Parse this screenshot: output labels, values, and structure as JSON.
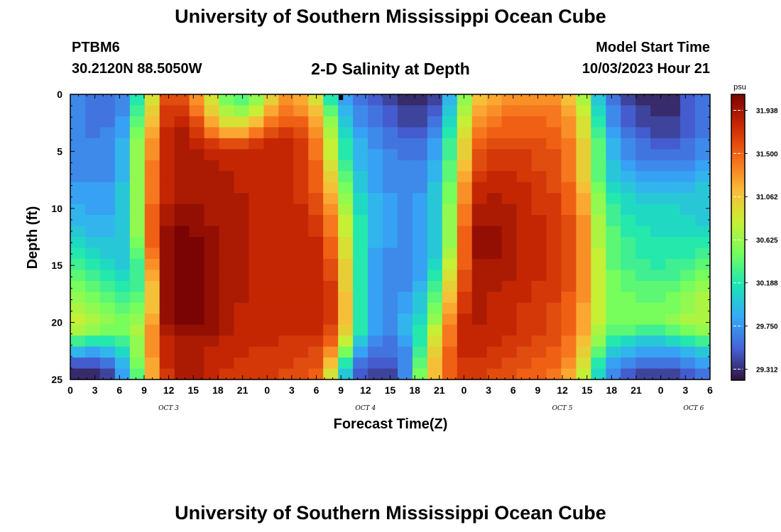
{
  "header": {
    "title": "University of Southern Mississippi Ocean Cube",
    "station": "PTBM6",
    "coordinates": "30.2120N  88.5050W",
    "subtitle": "2-D Salinity at Depth",
    "model_start_label": "Model Start Time",
    "model_start_value": "10/03/2023 Hour 21"
  },
  "footer": {
    "title": "University of Southern Mississippi Ocean Cube"
  },
  "chart_data": {
    "type": "heatmap",
    "xlabel": "Forecast Time(Z)",
    "ylabel": "Depth (ft)",
    "x_range_hours": [
      0,
      78
    ],
    "x_tick_labels": [
      "0",
      "3",
      "6",
      "9",
      "12",
      "15",
      "18",
      "21",
      "0",
      "3",
      "6",
      "9",
      "12",
      "15",
      "18",
      "21",
      "0",
      "3",
      "6",
      "9",
      "12",
      "15",
      "18",
      "21",
      "0",
      "3",
      "6"
    ],
    "x_day_labels": [
      {
        "label": "OCT 3",
        "hour": 12
      },
      {
        "label": "OCT 4",
        "hour": 36
      },
      {
        "label": "OCT 5",
        "hour": 60
      },
      {
        "label": "OCT 6",
        "hour": 76
      }
    ],
    "y_range": [
      0,
      25
    ],
    "y_tick_labels": [
      "0",
      "5",
      "10",
      "15",
      "20",
      "25"
    ],
    "y_inverted": true,
    "colorbar": {
      "unit": "psu",
      "min": 29.2,
      "max": 32.1,
      "tick_labels": [
        "31.938",
        "31.500",
        "31.062",
        "30.625",
        "30.188",
        "29.750",
        "29.312"
      ],
      "colors": [
        "#30123b",
        "#4662d8",
        "#35abf8",
        "#1be5b5",
        "#74fe5d",
        "#c9ef34",
        "#fbb938",
        "#f56918",
        "#c92903",
        "#7a0403"
      ]
    },
    "salinity_psu": [
      [
        29.7,
        29.6,
        29.6,
        29.7,
        30.2,
        30.9,
        31.6,
        31.6,
        31.3,
        30.9,
        30.5,
        30.4,
        30.6,
        31.0,
        31.3,
        31.2,
        30.9,
        30.2,
        29.8,
        29.6,
        29.5,
        29.4,
        29.3,
        29.3,
        29.4,
        29.9,
        30.6,
        31.1,
        31.2,
        31.3,
        31.3,
        31.3,
        31.3,
        31.1,
        30.7,
        30.0,
        29.6,
        29.4,
        29.3,
        29.3,
        29.3,
        29.5,
        29.6
      ],
      [
        29.7,
        29.6,
        29.6,
        29.7,
        30.3,
        31.0,
        31.7,
        31.7,
        31.4,
        31.0,
        30.7,
        30.6,
        30.8,
        31.2,
        31.4,
        31.3,
        31.1,
        30.4,
        29.9,
        29.7,
        29.6,
        29.5,
        29.4,
        29.4,
        29.5,
        30.0,
        30.7,
        31.2,
        31.3,
        31.4,
        31.4,
        31.4,
        31.4,
        31.2,
        30.8,
        30.1,
        29.7,
        29.5,
        29.4,
        29.3,
        29.3,
        29.5,
        29.6
      ],
      [
        29.7,
        29.6,
        29.6,
        29.8,
        30.4,
        31.1,
        31.7,
        31.8,
        31.6,
        31.2,
        30.9,
        30.9,
        31.1,
        31.4,
        31.5,
        31.5,
        31.2,
        30.6,
        30.0,
        29.7,
        29.6,
        29.5,
        29.4,
        29.4,
        29.6,
        30.1,
        30.8,
        31.3,
        31.4,
        31.5,
        31.5,
        31.5,
        31.4,
        31.3,
        30.9,
        30.2,
        29.7,
        29.5,
        29.4,
        29.4,
        29.4,
        29.5,
        29.6
      ],
      [
        29.7,
        29.6,
        29.7,
        29.8,
        30.5,
        31.2,
        31.8,
        31.9,
        31.7,
        31.4,
        31.2,
        31.2,
        31.4,
        31.6,
        31.7,
        31.6,
        31.3,
        30.7,
        30.1,
        29.8,
        29.7,
        29.6,
        29.5,
        29.5,
        29.7,
        30.2,
        30.9,
        31.4,
        31.5,
        31.5,
        31.5,
        31.5,
        31.5,
        31.3,
        30.9,
        30.3,
        29.8,
        29.6,
        29.5,
        29.4,
        29.4,
        29.5,
        29.6
      ],
      [
        29.7,
        29.7,
        29.7,
        29.9,
        30.6,
        31.3,
        31.8,
        31.9,
        31.8,
        31.7,
        31.6,
        31.6,
        31.7,
        31.8,
        31.8,
        31.7,
        31.4,
        30.8,
        30.2,
        29.9,
        29.7,
        29.6,
        29.6,
        29.6,
        29.8,
        30.3,
        31.0,
        31.5,
        31.6,
        31.6,
        31.6,
        31.6,
        31.5,
        31.4,
        31.0,
        30.4,
        29.9,
        29.7,
        29.6,
        29.5,
        29.5,
        29.6,
        29.7
      ],
      [
        29.7,
        29.7,
        29.7,
        29.9,
        30.6,
        31.3,
        31.8,
        31.9,
        31.9,
        31.8,
        31.8,
        31.8,
        31.8,
        31.8,
        31.8,
        31.7,
        31.4,
        30.8,
        30.2,
        29.9,
        29.8,
        29.7,
        29.6,
        29.6,
        29.8,
        30.3,
        31.0,
        31.6,
        31.7,
        31.7,
        31.7,
        31.6,
        31.6,
        31.4,
        31.0,
        30.4,
        29.9,
        29.7,
        29.6,
        29.6,
        29.6,
        29.6,
        29.7
      ],
      [
        29.7,
        29.7,
        29.7,
        29.9,
        30.6,
        31.4,
        31.8,
        31.9,
        31.9,
        31.9,
        31.8,
        31.8,
        31.8,
        31.8,
        31.8,
        31.7,
        31.5,
        30.9,
        30.3,
        29.9,
        29.8,
        29.7,
        29.7,
        29.7,
        29.9,
        30.4,
        31.1,
        31.6,
        31.7,
        31.7,
        31.7,
        31.6,
        31.6,
        31.4,
        31.0,
        30.4,
        30.0,
        29.8,
        29.7,
        29.7,
        29.7,
        29.7,
        29.8
      ],
      [
        29.7,
        29.7,
        29.7,
        29.9,
        30.6,
        31.4,
        31.8,
        31.9,
        31.9,
        31.9,
        31.9,
        31.8,
        31.8,
        31.8,
        31.8,
        31.7,
        31.5,
        31.0,
        30.4,
        30.0,
        29.8,
        29.7,
        29.7,
        29.7,
        29.9,
        30.4,
        31.2,
        31.7,
        31.8,
        31.8,
        31.7,
        31.7,
        31.6,
        31.4,
        31.0,
        30.4,
        30.0,
        29.9,
        29.8,
        29.8,
        29.8,
        29.8,
        29.9
      ],
      [
        29.8,
        29.8,
        29.8,
        30.0,
        30.6,
        31.4,
        31.8,
        31.9,
        31.9,
        31.9,
        31.9,
        31.8,
        31.8,
        31.8,
        31.8,
        31.7,
        31.5,
        31.1,
        30.5,
        30.0,
        29.8,
        29.7,
        29.7,
        29.7,
        30.0,
        30.5,
        31.3,
        31.8,
        31.8,
        31.8,
        31.8,
        31.7,
        31.6,
        31.5,
        31.1,
        30.5,
        30.1,
        30.0,
        29.9,
        29.9,
        29.9,
        29.9,
        30.0
      ],
      [
        29.8,
        29.8,
        29.8,
        30.0,
        30.6,
        31.4,
        31.8,
        31.9,
        31.9,
        31.9,
        31.9,
        31.9,
        31.8,
        31.8,
        31.8,
        31.7,
        31.6,
        31.2,
        30.6,
        30.1,
        29.9,
        29.8,
        29.7,
        29.8,
        30.0,
        30.5,
        31.3,
        31.8,
        31.9,
        31.8,
        31.8,
        31.7,
        31.7,
        31.5,
        31.2,
        30.6,
        30.2,
        30.1,
        30.0,
        30.0,
        30.0,
        30.0,
        30.0
      ],
      [
        29.9,
        29.8,
        29.8,
        30.0,
        30.6,
        31.5,
        31.9,
        32.0,
        32.0,
        31.9,
        31.9,
        31.9,
        31.8,
        31.8,
        31.8,
        31.8,
        31.6,
        31.3,
        30.7,
        30.1,
        29.9,
        29.8,
        29.7,
        29.8,
        30.0,
        30.6,
        31.4,
        31.9,
        31.9,
        31.9,
        31.8,
        31.7,
        31.7,
        31.5,
        31.2,
        30.6,
        30.3,
        30.1,
        30.1,
        30.1,
        30.1,
        30.0,
        30.0
      ],
      [
        29.9,
        29.9,
        29.9,
        30.0,
        30.6,
        31.5,
        31.9,
        32.0,
        32.0,
        31.9,
        31.9,
        31.9,
        31.8,
        31.8,
        31.8,
        31.8,
        31.7,
        31.4,
        30.8,
        30.2,
        29.9,
        29.8,
        29.7,
        29.8,
        30.0,
        30.6,
        31.4,
        31.9,
        31.9,
        31.9,
        31.8,
        31.8,
        31.7,
        31.6,
        31.3,
        30.7,
        30.3,
        30.2,
        30.1,
        30.1,
        30.1,
        30.1,
        30.0
      ],
      [
        30.0,
        29.9,
        29.9,
        30.0,
        30.6,
        31.5,
        32.0,
        32.1,
        32.0,
        32.0,
        31.9,
        31.9,
        31.8,
        31.8,
        31.8,
        31.8,
        31.7,
        31.4,
        30.8,
        30.2,
        29.9,
        29.8,
        29.7,
        29.8,
        30.0,
        30.6,
        31.5,
        32.0,
        32.0,
        31.9,
        31.8,
        31.8,
        31.7,
        31.6,
        31.3,
        30.7,
        30.4,
        30.2,
        30.2,
        30.1,
        30.1,
        30.1,
        30.1
      ],
      [
        30.1,
        30.0,
        30.0,
        30.0,
        30.5,
        31.5,
        32.0,
        32.1,
        32.1,
        32.0,
        31.9,
        31.9,
        31.8,
        31.8,
        31.8,
        31.8,
        31.8,
        31.5,
        30.9,
        30.2,
        29.9,
        29.8,
        29.7,
        29.8,
        30.0,
        30.6,
        31.5,
        32.0,
        32.0,
        31.9,
        31.8,
        31.8,
        31.7,
        31.6,
        31.3,
        30.7,
        30.4,
        30.3,
        30.2,
        30.2,
        30.2,
        30.2,
        30.2
      ],
      [
        30.2,
        30.1,
        30.0,
        30.0,
        30.4,
        31.4,
        32.0,
        32.1,
        32.1,
        32.0,
        31.9,
        31.9,
        31.8,
        31.8,
        31.8,
        31.8,
        31.8,
        31.5,
        30.9,
        30.2,
        29.8,
        29.7,
        29.7,
        29.8,
        30.0,
        30.7,
        31.5,
        32.0,
        32.0,
        31.9,
        31.8,
        31.8,
        31.7,
        31.6,
        31.3,
        30.8,
        30.4,
        30.3,
        30.2,
        30.2,
        30.2,
        30.2,
        30.3
      ],
      [
        30.3,
        30.2,
        30.1,
        30.0,
        30.3,
        31.3,
        32.0,
        32.1,
        32.1,
        32.0,
        31.9,
        31.9,
        31.8,
        31.8,
        31.8,
        31.8,
        31.8,
        31.6,
        31.0,
        30.2,
        29.8,
        29.7,
        29.7,
        29.8,
        30.1,
        30.8,
        31.5,
        31.9,
        31.9,
        31.9,
        31.8,
        31.8,
        31.7,
        31.6,
        31.3,
        30.8,
        30.4,
        30.3,
        30.3,
        30.2,
        30.3,
        30.3,
        30.4
      ],
      [
        30.4,
        30.3,
        30.2,
        30.1,
        30.3,
        31.2,
        32.0,
        32.1,
        32.1,
        32.0,
        31.9,
        31.9,
        31.8,
        31.8,
        31.8,
        31.8,
        31.8,
        31.6,
        31.0,
        30.2,
        29.8,
        29.7,
        29.7,
        29.8,
        30.2,
        30.9,
        31.6,
        31.9,
        31.9,
        31.9,
        31.8,
        31.8,
        31.7,
        31.6,
        31.3,
        30.8,
        30.5,
        30.4,
        30.3,
        30.3,
        30.3,
        30.4,
        30.5
      ],
      [
        30.5,
        30.4,
        30.3,
        30.2,
        30.3,
        31.1,
        32.0,
        32.1,
        32.1,
        32.0,
        31.9,
        31.9,
        31.8,
        31.8,
        31.8,
        31.8,
        31.8,
        31.7,
        31.0,
        30.2,
        29.8,
        29.7,
        29.7,
        29.9,
        30.3,
        31.0,
        31.6,
        31.9,
        31.9,
        31.8,
        31.8,
        31.7,
        31.7,
        31.6,
        31.3,
        30.8,
        30.5,
        30.4,
        30.4,
        30.4,
        30.4,
        30.5,
        30.6
      ],
      [
        30.6,
        30.5,
        30.4,
        30.3,
        30.4,
        31.1,
        32.0,
        32.1,
        32.1,
        32.0,
        31.9,
        31.9,
        31.8,
        31.8,
        31.8,
        31.8,
        31.8,
        31.7,
        31.1,
        30.2,
        29.8,
        29.7,
        29.8,
        30.0,
        30.4,
        31.1,
        31.7,
        31.9,
        31.8,
        31.8,
        31.8,
        31.7,
        31.7,
        31.5,
        31.3,
        30.8,
        30.5,
        30.5,
        30.4,
        30.4,
        30.5,
        30.6,
        30.7
      ],
      [
        30.7,
        30.6,
        30.5,
        30.4,
        30.5,
        31.1,
        32.0,
        32.1,
        32.1,
        32.0,
        31.9,
        31.8,
        31.8,
        31.8,
        31.8,
        31.8,
        31.8,
        31.7,
        31.1,
        30.2,
        29.8,
        29.7,
        29.8,
        30.0,
        30.5,
        31.2,
        31.7,
        31.9,
        31.8,
        31.8,
        31.7,
        31.7,
        31.6,
        31.5,
        31.2,
        30.8,
        30.5,
        30.5,
        30.5,
        30.5,
        30.5,
        30.6,
        30.7
      ],
      [
        30.8,
        30.7,
        30.6,
        30.5,
        30.6,
        31.2,
        32.0,
        32.1,
        32.1,
        32.0,
        31.9,
        31.8,
        31.8,
        31.8,
        31.8,
        31.8,
        31.8,
        31.7,
        31.1,
        30.2,
        29.8,
        29.7,
        29.9,
        30.1,
        30.6,
        31.3,
        31.8,
        31.9,
        31.8,
        31.8,
        31.7,
        31.7,
        31.6,
        31.5,
        31.2,
        30.8,
        30.5,
        30.5,
        30.5,
        30.5,
        30.6,
        30.7,
        30.7
      ],
      [
        30.7,
        30.6,
        30.5,
        30.5,
        30.7,
        31.3,
        31.9,
        32.0,
        32.0,
        32.0,
        31.9,
        31.8,
        31.8,
        31.8,
        31.8,
        31.8,
        31.8,
        31.6,
        31.0,
        30.2,
        29.8,
        29.7,
        29.9,
        30.2,
        30.8,
        31.4,
        31.8,
        31.8,
        31.8,
        31.8,
        31.7,
        31.7,
        31.6,
        31.5,
        31.2,
        30.7,
        30.4,
        30.4,
        30.3,
        30.3,
        30.4,
        30.5,
        30.6
      ],
      [
        30.3,
        30.2,
        30.2,
        30.3,
        30.6,
        31.3,
        31.8,
        31.9,
        31.9,
        31.9,
        31.8,
        31.8,
        31.8,
        31.8,
        31.7,
        31.7,
        31.7,
        31.5,
        30.8,
        30.0,
        29.7,
        29.6,
        29.8,
        30.2,
        30.9,
        31.4,
        31.8,
        31.8,
        31.8,
        31.7,
        31.7,
        31.6,
        31.6,
        31.4,
        31.1,
        30.6,
        30.2,
        30.1,
        30.0,
        30.0,
        30.1,
        30.2,
        30.3
      ],
      [
        29.9,
        29.8,
        29.9,
        30.1,
        30.6,
        31.3,
        31.8,
        31.9,
        31.9,
        31.8,
        31.8,
        31.8,
        31.7,
        31.7,
        31.7,
        31.7,
        31.6,
        31.3,
        30.5,
        29.8,
        29.6,
        29.6,
        29.7,
        30.3,
        31.0,
        31.5,
        31.8,
        31.8,
        31.7,
        31.7,
        31.6,
        31.6,
        31.5,
        31.4,
        31.0,
        30.4,
        30.0,
        29.9,
        29.8,
        29.8,
        29.8,
        29.9,
        30.0
      ],
      [
        29.5,
        29.5,
        29.6,
        29.9,
        30.5,
        31.2,
        31.8,
        31.9,
        31.9,
        31.8,
        31.8,
        31.7,
        31.7,
        31.7,
        31.7,
        31.6,
        31.6,
        31.1,
        30.2,
        29.6,
        29.5,
        29.5,
        29.7,
        30.4,
        31.1,
        31.5,
        31.7,
        31.7,
        31.7,
        31.6,
        31.6,
        31.5,
        31.5,
        31.3,
        30.9,
        30.2,
        29.8,
        29.7,
        29.6,
        29.6,
        29.6,
        29.7,
        29.8
      ],
      [
        29.3,
        29.3,
        29.4,
        29.8,
        30.4,
        31.2,
        31.7,
        31.9,
        31.9,
        31.8,
        31.7,
        31.7,
        31.7,
        31.7,
        31.6,
        31.6,
        31.5,
        30.9,
        30.0,
        29.5,
        29.4,
        29.4,
        29.7,
        30.5,
        31.1,
        31.5,
        31.7,
        31.7,
        31.6,
        31.6,
        31.5,
        31.5,
        31.4,
        31.2,
        30.8,
        30.1,
        29.7,
        29.5,
        29.4,
        29.4,
        29.4,
        29.5,
        29.6
      ]
    ]
  }
}
